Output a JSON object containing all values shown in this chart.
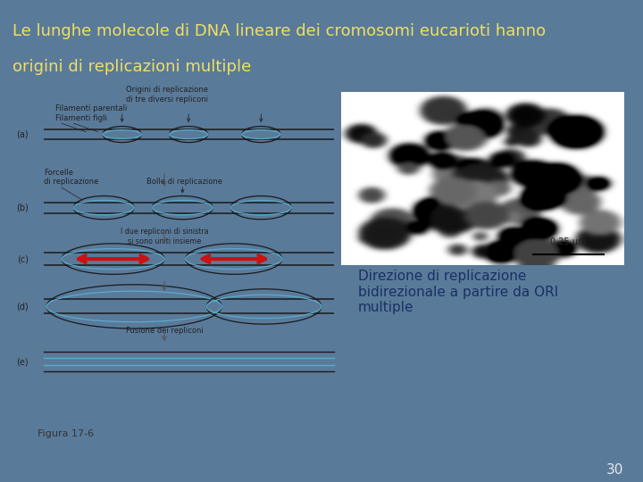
{
  "title_line1": "Le lunghe molecole di DNA lineare dei cromosomi eucarioti hanno",
  "title_line2": "origini di replicazioni multiple",
  "title_color": "#f0e060",
  "slide_bg": "#5a7a9a",
  "content_bg": "#ffffff",
  "annotation_text": "Direzione di replicazione\nbidirezionale a partire da ORI\nmultiple",
  "annotation_color": "#1a3060",
  "page_number": "30",
  "page_number_color": "#e8e8e8",
  "figura_label": "Figura 17-6",
  "figura_color": "#333333",
  "title_fontsize": 13,
  "annotation_fontsize": 11,
  "figure_fontsize": 8,
  "dna_color": "#1a1a1a",
  "dna_inner_color": "#5aabcc",
  "label_color": "#222222",
  "arrow_color": "#555555",
  "red_arrow_color": "#cc1111"
}
